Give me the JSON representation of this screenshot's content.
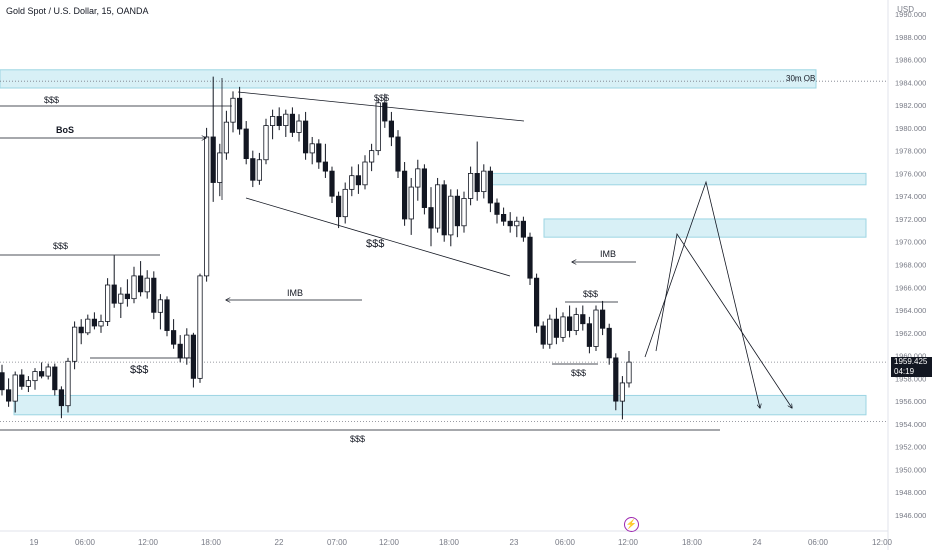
{
  "header": {
    "title": "Gold Spot / U.S. Dollar, 15, OANDA",
    "currency": "USD"
  },
  "current": {
    "price": "1959.425",
    "countdown": "04:19"
  },
  "chart_data": {
    "type": "candlestick",
    "ylim": [
      1945.5,
      1990.5
    ],
    "y_ticks": [
      "1946.000",
      "1948.000",
      "1950.000",
      "1952.000",
      "1954.000",
      "1956.000",
      "1958.000",
      "1960.000",
      "1962.000",
      "1964.000",
      "1966.000",
      "1968.000",
      "1970.000",
      "1972.000",
      "1974.000",
      "1976.000",
      "1978.000",
      "1980.000",
      "1982.000",
      "1984.000",
      "1986.000",
      "1988.000",
      "1990.000"
    ],
    "x_ticks": [
      "19",
      "06:00",
      "12:00",
      "18:00",
      "22",
      "07:00",
      "12:00",
      "18:00",
      "23",
      "06:00",
      "12:00",
      "18:00",
      "24",
      "06:00",
      "12:00"
    ],
    "last_price": 1959.425,
    "dotted_levels": [
      1984.1,
      1954.2
    ],
    "zones": [
      {
        "label": "30m OB",
        "from": 1983.5,
        "to": 1985.1
      },
      {
        "label": "",
        "from": 1975.0,
        "to": 1976.0
      },
      {
        "label": "",
        "from": 1970.4,
        "to": 1972.0
      },
      {
        "label": "",
        "from": 1954.8,
        "to": 1956.5
      }
    ],
    "annotations": [
      {
        "text": "$$$",
        "near": 1982.5
      },
      {
        "text": "BoS",
        "near": 1980.0
      },
      {
        "text": "$$$",
        "near": 1982.5
      },
      {
        "text": "$$$",
        "near": 1969.4
      },
      {
        "text": "$$$",
        "near": 1970.0
      },
      {
        "text": "IMB",
        "near": 1965.5
      },
      {
        "text": "IMB",
        "near": 1968.0
      },
      {
        "text": "$$$",
        "near": 1965.5
      },
      {
        "text": "$$$",
        "near": 1959.5
      },
      {
        "text": "$$$",
        "near": 1959.5
      },
      {
        "text": "$$$",
        "near": 1952.8
      }
    ],
    "candles": [
      [
        1958.5,
        1959.2,
        1956.5,
        1957.0
      ],
      [
        1957.0,
        1958.0,
        1955.5,
        1956.0
      ],
      [
        1956.0,
        1958.6,
        1955.0,
        1958.3
      ],
      [
        1958.3,
        1958.8,
        1957.0,
        1957.3
      ],
      [
        1957.3,
        1958.2,
        1956.8,
        1957.8
      ],
      [
        1957.8,
        1958.9,
        1957.0,
        1958.6
      ],
      [
        1958.6,
        1959.4,
        1958.0,
        1958.2
      ],
      [
        1958.2,
        1959.3,
        1957.9,
        1959.0
      ],
      [
        1959.0,
        1959.3,
        1956.5,
        1957.0
      ],
      [
        1957.0,
        1957.3,
        1954.5,
        1955.6
      ],
      [
        1955.6,
        1959.8,
        1955.0,
        1959.5
      ],
      [
        1959.5,
        1963.0,
        1958.8,
        1962.5
      ],
      [
        1962.5,
        1963.2,
        1961.0,
        1962.0
      ],
      [
        1962.0,
        1963.6,
        1961.8,
        1963.2
      ],
      [
        1963.2,
        1963.8,
        1962.3,
        1962.6
      ],
      [
        1962.6,
        1963.6,
        1962.0,
        1963.0
      ],
      [
        1963.0,
        1966.8,
        1962.6,
        1966.2
      ],
      [
        1966.2,
        1968.8,
        1964.2,
        1964.6
      ],
      [
        1964.6,
        1966.0,
        1963.3,
        1965.4
      ],
      [
        1965.4,
        1966.7,
        1964.3,
        1965.0
      ],
      [
        1965.0,
        1967.8,
        1964.6,
        1967.0
      ],
      [
        1967.0,
        1968.3,
        1965.2,
        1965.6
      ],
      [
        1965.6,
        1967.5,
        1965.0,
        1966.8
      ],
      [
        1966.8,
        1967.4,
        1963.2,
        1963.8
      ],
      [
        1963.8,
        1965.4,
        1962.3,
        1964.9
      ],
      [
        1964.9,
        1965.2,
        1961.7,
        1962.2
      ],
      [
        1962.2,
        1963.2,
        1960.6,
        1961.0
      ],
      [
        1961.0,
        1961.8,
        1959.4,
        1959.8
      ],
      [
        1959.8,
        1962.4,
        1959.2,
        1961.8
      ],
      [
        1961.8,
        1962.0,
        1957.2,
        1958.0
      ],
      [
        1958.0,
        1967.2,
        1957.6,
        1967.0
      ],
      [
        1967.0,
        1980.0,
        1966.5,
        1979.2
      ],
      [
        1979.2,
        1984.5,
        1973.5,
        1975.2
      ],
      [
        1975.2,
        1978.6,
        1974.0,
        1977.8
      ],
      [
        1977.8,
        1981.5,
        1977.2,
        1980.5
      ],
      [
        1980.5,
        1983.2,
        1979.6,
        1982.6
      ],
      [
        1982.6,
        1983.6,
        1979.4,
        1979.9
      ],
      [
        1979.9,
        1980.6,
        1976.8,
        1977.3
      ],
      [
        1977.3,
        1978.0,
        1974.8,
        1975.4
      ],
      [
        1975.4,
        1977.8,
        1975.0,
        1977.2
      ],
      [
        1977.2,
        1980.8,
        1976.8,
        1980.2
      ],
      [
        1980.2,
        1981.6,
        1979.0,
        1981.0
      ],
      [
        1981.0,
        1981.8,
        1979.8,
        1980.2
      ],
      [
        1980.2,
        1981.6,
        1979.2,
        1981.2
      ],
      [
        1981.2,
        1981.8,
        1979.2,
        1979.6
      ],
      [
        1979.6,
        1981.2,
        1978.8,
        1980.6
      ],
      [
        1980.6,
        1981.4,
        1977.2,
        1977.8
      ],
      [
        1977.8,
        1979.2,
        1976.8,
        1978.6
      ],
      [
        1978.6,
        1979.0,
        1976.4,
        1977.0
      ],
      [
        1977.0,
        1978.6,
        1975.6,
        1976.2
      ],
      [
        1976.2,
        1976.6,
        1973.4,
        1974.0
      ],
      [
        1974.0,
        1974.4,
        1971.2,
        1972.2
      ],
      [
        1972.2,
        1975.2,
        1971.6,
        1974.6
      ],
      [
        1974.6,
        1976.6,
        1974.0,
        1975.8
      ],
      [
        1975.8,
        1976.8,
        1974.2,
        1975.0
      ],
      [
        1975.0,
        1977.6,
        1974.6,
        1977.0
      ],
      [
        1977.0,
        1978.6,
        1976.2,
        1978.0
      ],
      [
        1978.0,
        1982.6,
        1977.6,
        1982.2
      ],
      [
        1982.2,
        1983.0,
        1980.0,
        1980.6
      ],
      [
        1980.6,
        1981.4,
        1978.4,
        1979.2
      ],
      [
        1979.2,
        1979.8,
        1975.6,
        1976.2
      ],
      [
        1976.2,
        1977.0,
        1971.4,
        1972.0
      ],
      [
        1972.0,
        1975.6,
        1970.6,
        1974.8
      ],
      [
        1974.8,
        1977.2,
        1973.6,
        1976.4
      ],
      [
        1976.4,
        1976.8,
        1972.4,
        1973.0
      ],
      [
        1973.0,
        1974.8,
        1969.6,
        1971.2
      ],
      [
        1971.2,
        1975.6,
        1970.8,
        1975.0
      ],
      [
        1975.0,
        1975.4,
        1970.0,
        1970.6
      ],
      [
        1970.6,
        1974.6,
        1969.6,
        1974.0
      ],
      [
        1974.0,
        1974.6,
        1970.4,
        1971.4
      ],
      [
        1971.4,
        1974.4,
        1970.8,
        1973.8
      ],
      [
        1973.8,
        1976.6,
        1973.2,
        1976.0
      ],
      [
        1976.0,
        1978.8,
        1973.6,
        1974.4
      ],
      [
        1974.4,
        1976.8,
        1973.8,
        1976.2
      ],
      [
        1976.2,
        1976.6,
        1972.6,
        1973.4
      ],
      [
        1973.4,
        1973.8,
        1971.6,
        1972.4
      ],
      [
        1972.4,
        1973.0,
        1971.4,
        1971.8
      ],
      [
        1971.8,
        1972.6,
        1970.8,
        1971.4
      ],
      [
        1971.4,
        1972.2,
        1970.4,
        1971.8
      ],
      [
        1971.8,
        1972.2,
        1970.0,
        1970.4
      ],
      [
        1970.4,
        1970.8,
        1966.2,
        1966.8
      ],
      [
        1966.8,
        1967.2,
        1962.0,
        1962.6
      ],
      [
        1962.6,
        1963.0,
        1960.6,
        1961.0
      ],
      [
        1961.0,
        1963.6,
        1960.6,
        1963.2
      ],
      [
        1963.2,
        1964.2,
        1961.0,
        1961.6
      ],
      [
        1961.6,
        1963.8,
        1961.2,
        1963.4
      ],
      [
        1963.4,
        1964.4,
        1961.6,
        1962.2
      ],
      [
        1962.2,
        1964.2,
        1961.8,
        1963.6
      ],
      [
        1963.6,
        1964.4,
        1962.2,
        1962.8
      ],
      [
        1962.8,
        1963.4,
        1960.2,
        1960.8
      ],
      [
        1960.8,
        1964.4,
        1960.4,
        1964.0
      ],
      [
        1964.0,
        1964.8,
        1961.8,
        1962.4
      ],
      [
        1962.4,
        1962.8,
        1959.2,
        1959.8
      ],
      [
        1959.8,
        1960.2,
        1955.2,
        1956.0
      ],
      [
        1956.0,
        1958.2,
        1954.4,
        1957.6
      ],
      [
        1957.6,
        1960.4,
        1957.2,
        1959.425
      ]
    ]
  }
}
